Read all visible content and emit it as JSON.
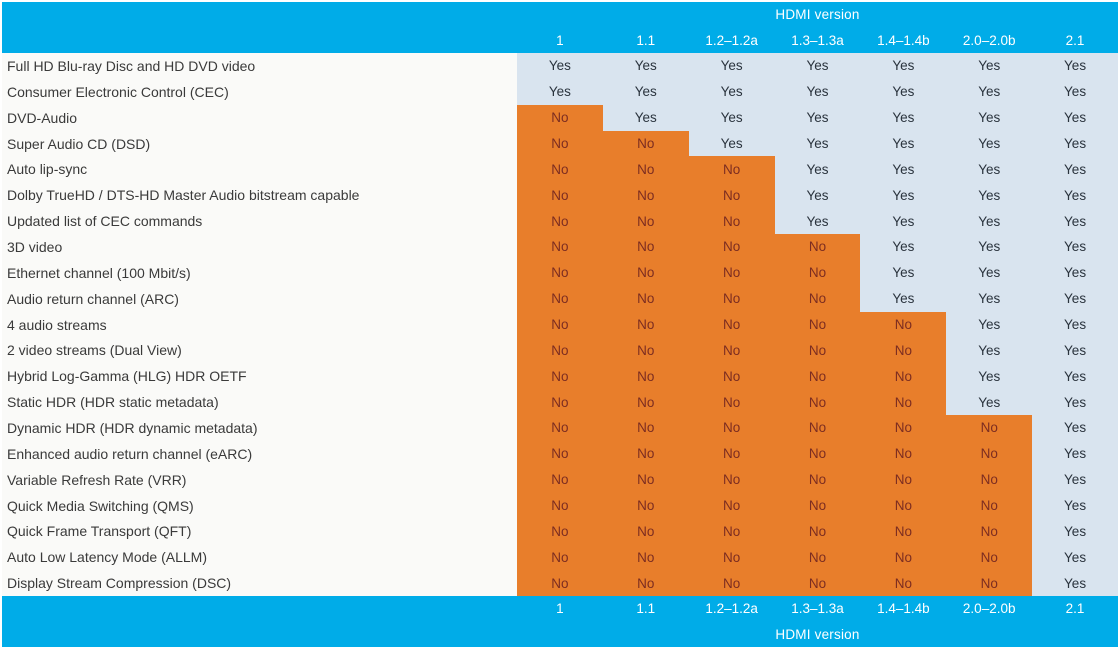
{
  "colors": {
    "page_bg": "#FFFFFF",
    "cyan": "#00ACE8",
    "header_text": "#FFFFFF",
    "label_bg": "#FAFAF8",
    "label_text": "#3A3A3A",
    "yes_bg": "#D9E4EF",
    "yes_text": "#2A333D",
    "no_bg": "#E87E2B",
    "no_text": "#7C2D21"
  },
  "chart_data": {
    "type": "table",
    "title": "HDMI version",
    "columns": [
      "1",
      "1.1",
      "1.2–1.2a",
      "1.3–1.3a",
      "1.4–1.4b",
      "2.0–2.0b",
      "2.1"
    ],
    "rows": [
      {
        "feature": "Full HD Blu-ray Disc and HD DVD video",
        "values": [
          "Yes",
          "Yes",
          "Yes",
          "Yes",
          "Yes",
          "Yes",
          "Yes"
        ]
      },
      {
        "feature": "Consumer Electronic Control (CEC)",
        "values": [
          "Yes",
          "Yes",
          "Yes",
          "Yes",
          "Yes",
          "Yes",
          "Yes"
        ]
      },
      {
        "feature": "DVD-Audio",
        "values": [
          "No",
          "Yes",
          "Yes",
          "Yes",
          "Yes",
          "Yes",
          "Yes"
        ]
      },
      {
        "feature": "Super Audio CD (DSD)",
        "values": [
          "No",
          "No",
          "Yes",
          "Yes",
          "Yes",
          "Yes",
          "Yes"
        ]
      },
      {
        "feature": "Auto lip-sync",
        "values": [
          "No",
          "No",
          "No",
          "Yes",
          "Yes",
          "Yes",
          "Yes"
        ]
      },
      {
        "feature": "Dolby TrueHD / DTS-HD Master Audio bitstream capable",
        "values": [
          "No",
          "No",
          "No",
          "Yes",
          "Yes",
          "Yes",
          "Yes"
        ]
      },
      {
        "feature": "Updated list of CEC commands",
        "values": [
          "No",
          "No",
          "No",
          "Yes",
          "Yes",
          "Yes",
          "Yes"
        ]
      },
      {
        "feature": "3D video",
        "values": [
          "No",
          "No",
          "No",
          "No",
          "Yes",
          "Yes",
          "Yes"
        ]
      },
      {
        "feature": "Ethernet channel (100 Mbit/s)",
        "values": [
          "No",
          "No",
          "No",
          "No",
          "Yes",
          "Yes",
          "Yes"
        ]
      },
      {
        "feature": "Audio return channel (ARC)",
        "values": [
          "No",
          "No",
          "No",
          "No",
          "Yes",
          "Yes",
          "Yes"
        ]
      },
      {
        "feature": "4 audio streams",
        "values": [
          "No",
          "No",
          "No",
          "No",
          "No",
          "Yes",
          "Yes"
        ]
      },
      {
        "feature": "2 video streams (Dual View)",
        "values": [
          "No",
          "No",
          "No",
          "No",
          "No",
          "Yes",
          "Yes"
        ]
      },
      {
        "feature": "Hybrid Log-Gamma (HLG) HDR OETF",
        "values": [
          "No",
          "No",
          "No",
          "No",
          "No",
          "Yes",
          "Yes"
        ]
      },
      {
        "feature": "Static HDR (HDR static metadata)",
        "values": [
          "No",
          "No",
          "No",
          "No",
          "No",
          "Yes",
          "Yes"
        ]
      },
      {
        "feature": "Dynamic HDR (HDR dynamic metadata)",
        "values": [
          "No",
          "No",
          "No",
          "No",
          "No",
          "No",
          "Yes"
        ]
      },
      {
        "feature": "Enhanced audio return channel (eARC)",
        "values": [
          "No",
          "No",
          "No",
          "No",
          "No",
          "No",
          "Yes"
        ]
      },
      {
        "feature": "Variable Refresh Rate (VRR)",
        "values": [
          "No",
          "No",
          "No",
          "No",
          "No",
          "No",
          "Yes"
        ]
      },
      {
        "feature": "Quick Media Switching (QMS)",
        "values": [
          "No",
          "No",
          "No",
          "No",
          "No",
          "No",
          "Yes"
        ]
      },
      {
        "feature": "Quick Frame Transport (QFT)",
        "values": [
          "No",
          "No",
          "No",
          "No",
          "No",
          "No",
          "Yes"
        ]
      },
      {
        "feature": "Auto Low Latency Mode (ALLM)",
        "values": [
          "No",
          "No",
          "No",
          "No",
          "No",
          "No",
          "Yes"
        ]
      },
      {
        "feature": "Display Stream Compression (DSC)",
        "values": [
          "No",
          "No",
          "No",
          "No",
          "No",
          "No",
          "Yes"
        ]
      }
    ]
  }
}
